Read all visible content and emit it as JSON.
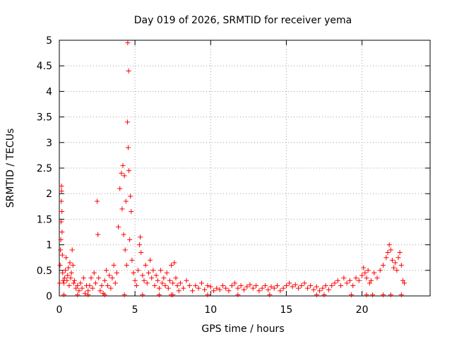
{
  "chart_data": {
    "type": "scatter",
    "title": "Day 019 of 2026, SRMTID for receiver yema",
    "xlabel": "GPS time / hours",
    "ylabel": "SRMTID / TECUs",
    "xlim": [
      0,
      24.5
    ],
    "ylim": [
      0,
      5
    ],
    "x_ticks": [
      0,
      5,
      10,
      15,
      20
    ],
    "x_tick_labels": [
      "0",
      "5",
      "10",
      "15",
      "20"
    ],
    "y_ticks": [
      0,
      0.5,
      1,
      1.5,
      2,
      2.5,
      3,
      3.5,
      4,
      4.5,
      5
    ],
    "y_tick_labels": [
      "0",
      "0.5",
      "1",
      "1.5",
      "2",
      "2.5",
      "3",
      "3.5",
      "4",
      "4.5",
      "5"
    ],
    "grid": true,
    "marker": "+",
    "color": "#ff0000",
    "series": [
      {
        "name": "SRMTID",
        "points": [
          [
            0.02,
            0.25
          ],
          [
            0.05,
            0.6
          ],
          [
            0.08,
            0.9
          ],
          [
            0.1,
            1.1
          ],
          [
            0.12,
            1.45
          ],
          [
            0.13,
            1.85
          ],
          [
            0.14,
            2.15
          ],
          [
            0.15,
            2.05
          ],
          [
            0.17,
            1.65
          ],
          [
            0.18,
            1.25
          ],
          [
            0.2,
            0.8
          ],
          [
            0.22,
            0.45
          ],
          [
            0.25,
            0.3
          ],
          [
            0.3,
            0.25
          ],
          [
            0.35,
            0.35
          ],
          [
            0.4,
            0.5
          ],
          [
            0.45,
            0.75
          ],
          [
            0.5,
            0.3
          ],
          [
            0.55,
            0.4
          ],
          [
            0.6,
            0.55
          ],
          [
            0.65,
            0.2
          ],
          [
            0.7,
            0.65
          ],
          [
            0.75,
            0.35
          ],
          [
            0.8,
            0.45
          ],
          [
            0.85,
            0.9
          ],
          [
            0.9,
            0.6
          ],
          [
            0.95,
            0.25
          ],
          [
            1.0,
            0.3
          ],
          [
            1.1,
            0.15
          ],
          [
            1.2,
            0.2
          ],
          [
            1.3,
            0.1
          ],
          [
            1.4,
            0.25
          ],
          [
            1.5,
            0.15
          ],
          [
            1.6,
            0.35
          ],
          [
            1.7,
            0.05
          ],
          [
            1.8,
            0.2
          ],
          [
            1.9,
            0.1
          ],
          [
            2.0,
            0.2
          ],
          [
            2.1,
            0.35
          ],
          [
            2.2,
            0.15
          ],
          [
            2.3,
            0.45
          ],
          [
            2.4,
            0.25
          ],
          [
            2.5,
            1.85
          ],
          [
            2.55,
            1.2
          ],
          [
            2.6,
            0.35
          ],
          [
            2.7,
            0.1
          ],
          [
            2.8,
            0.2
          ],
          [
            2.9,
            0.05
          ],
          [
            3.0,
            0.3
          ],
          [
            3.1,
            0.5
          ],
          [
            3.2,
            0.2
          ],
          [
            3.3,
            0.4
          ],
          [
            3.4,
            0.15
          ],
          [
            3.5,
            0.35
          ],
          [
            3.6,
            0.6
          ],
          [
            3.7,
            0.25
          ],
          [
            3.8,
            0.45
          ],
          [
            3.9,
            1.35
          ],
          [
            4.0,
            2.1
          ],
          [
            4.1,
            2.4
          ],
          [
            4.15,
            1.7
          ],
          [
            4.2,
            2.55
          ],
          [
            4.25,
            1.2
          ],
          [
            4.3,
            2.35
          ],
          [
            4.35,
            0.9
          ],
          [
            4.4,
            1.85
          ],
          [
            4.45,
            0.6
          ],
          [
            4.5,
            3.4
          ],
          [
            4.52,
            4.95
          ],
          [
            4.55,
            2.9
          ],
          [
            4.58,
            4.4
          ],
          [
            4.6,
            2.45
          ],
          [
            4.65,
            1.1
          ],
          [
            4.7,
            1.95
          ],
          [
            4.75,
            1.65
          ],
          [
            4.8,
            0.7
          ],
          [
            4.9,
            0.45
          ],
          [
            5.0,
            0.3
          ],
          [
            5.1,
            0.2
          ],
          [
            5.2,
            0.5
          ],
          [
            5.3,
            1.0
          ],
          [
            5.35,
            1.15
          ],
          [
            5.4,
            0.85
          ],
          [
            5.5,
            0.4
          ],
          [
            5.6,
            0.3
          ],
          [
            5.7,
            0.6
          ],
          [
            5.8,
            0.25
          ],
          [
            5.9,
            0.45
          ],
          [
            6.0,
            0.7
          ],
          [
            6.1,
            0.35
          ],
          [
            6.2,
            0.5
          ],
          [
            6.3,
            0.2
          ],
          [
            6.4,
            0.4
          ],
          [
            6.5,
            0.3
          ],
          [
            6.6,
            0.15
          ],
          [
            6.7,
            0.5
          ],
          [
            6.8,
            0.25
          ],
          [
            6.9,
            0.35
          ],
          [
            7.0,
            0.2
          ],
          [
            7.1,
            0.45
          ],
          [
            7.2,
            0.15
          ],
          [
            7.3,
            0.3
          ],
          [
            7.4,
            0.6
          ],
          [
            7.5,
            0.25
          ],
          [
            7.6,
            0.65
          ],
          [
            7.7,
            0.35
          ],
          [
            7.8,
            0.2
          ],
          [
            7.9,
            0.1
          ],
          [
            8.0,
            0.25
          ],
          [
            8.2,
            0.15
          ],
          [
            8.4,
            0.3
          ],
          [
            8.6,
            0.2
          ],
          [
            8.8,
            0.1
          ],
          [
            9.0,
            0.2
          ],
          [
            9.2,
            0.15
          ],
          [
            9.4,
            0.25
          ],
          [
            9.6,
            0.12
          ],
          [
            9.8,
            0.2
          ],
          [
            10.0,
            0.18
          ],
          [
            10.2,
            0.1
          ],
          [
            10.4,
            0.15
          ],
          [
            10.6,
            0.12
          ],
          [
            10.8,
            0.2
          ],
          [
            11.0,
            0.15
          ],
          [
            11.2,
            0.1
          ],
          [
            11.4,
            0.2
          ],
          [
            11.6,
            0.25
          ],
          [
            11.8,
            0.15
          ],
          [
            12.0,
            0.2
          ],
          [
            12.2,
            0.12
          ],
          [
            12.4,
            0.18
          ],
          [
            12.6,
            0.22
          ],
          [
            12.8,
            0.15
          ],
          [
            13.0,
            0.2
          ],
          [
            13.2,
            0.1
          ],
          [
            13.4,
            0.15
          ],
          [
            13.6,
            0.2
          ],
          [
            13.8,
            0.12
          ],
          [
            14.0,
            0.18
          ],
          [
            14.2,
            0.15
          ],
          [
            14.4,
            0.2
          ],
          [
            14.6,
            0.1
          ],
          [
            14.8,
            0.15
          ],
          [
            15.0,
            0.2
          ],
          [
            15.2,
            0.25
          ],
          [
            15.4,
            0.18
          ],
          [
            15.6,
            0.22
          ],
          [
            15.8,
            0.15
          ],
          [
            16.0,
            0.2
          ],
          [
            16.2,
            0.25
          ],
          [
            16.4,
            0.15
          ],
          [
            16.6,
            0.2
          ],
          [
            16.8,
            0.12
          ],
          [
            17.0,
            0.18
          ],
          [
            17.2,
            0.1
          ],
          [
            17.4,
            0.15
          ],
          [
            17.6,
            0.2
          ],
          [
            17.8,
            0.12
          ],
          [
            18.0,
            0.2
          ],
          [
            18.2,
            0.25
          ],
          [
            18.4,
            0.3
          ],
          [
            18.6,
            0.2
          ],
          [
            18.8,
            0.35
          ],
          [
            19.0,
            0.25
          ],
          [
            19.2,
            0.3
          ],
          [
            19.4,
            0.2
          ],
          [
            19.6,
            0.35
          ],
          [
            19.8,
            0.3
          ],
          [
            20.0,
            0.4
          ],
          [
            20.1,
            0.55
          ],
          [
            20.2,
            0.45
          ],
          [
            20.3,
            0.35
          ],
          [
            20.4,
            0.5
          ],
          [
            20.5,
            0.25
          ],
          [
            20.6,
            0.3
          ],
          [
            20.8,
            0.45
          ],
          [
            21.0,
            0.35
          ],
          [
            21.2,
            0.5
          ],
          [
            21.4,
            0.6
          ],
          [
            21.6,
            0.75
          ],
          [
            21.7,
            0.85
          ],
          [
            21.8,
            1.0
          ],
          [
            21.9,
            0.9
          ],
          [
            22.0,
            0.7
          ],
          [
            22.1,
            0.55
          ],
          [
            22.2,
            0.65
          ],
          [
            22.3,
            0.5
          ],
          [
            22.4,
            0.75
          ],
          [
            22.5,
            0.85
          ],
          [
            22.6,
            0.6
          ],
          [
            22.7,
            0.3
          ],
          [
            22.8,
            0.25
          ],
          [
            0.3,
            0.02
          ],
          [
            1.2,
            0.02
          ],
          [
            1.9,
            0.02
          ],
          [
            3.0,
            0.02
          ],
          [
            4.3,
            0.02
          ],
          [
            5.5,
            0.02
          ],
          [
            6.6,
            0.02
          ],
          [
            7.4,
            0.02
          ],
          [
            7.5,
            0.02
          ],
          [
            9.8,
            0.02
          ],
          [
            11.8,
            0.02
          ],
          [
            13.9,
            0.02
          ],
          [
            17.0,
            0.02
          ],
          [
            17.5,
            0.02
          ],
          [
            19.3,
            0.02
          ],
          [
            20.3,
            0.02
          ],
          [
            20.7,
            0.02
          ],
          [
            21.4,
            0.02
          ],
          [
            21.9,
            0.02
          ],
          [
            22.6,
            0.02
          ]
        ]
      }
    ]
  }
}
